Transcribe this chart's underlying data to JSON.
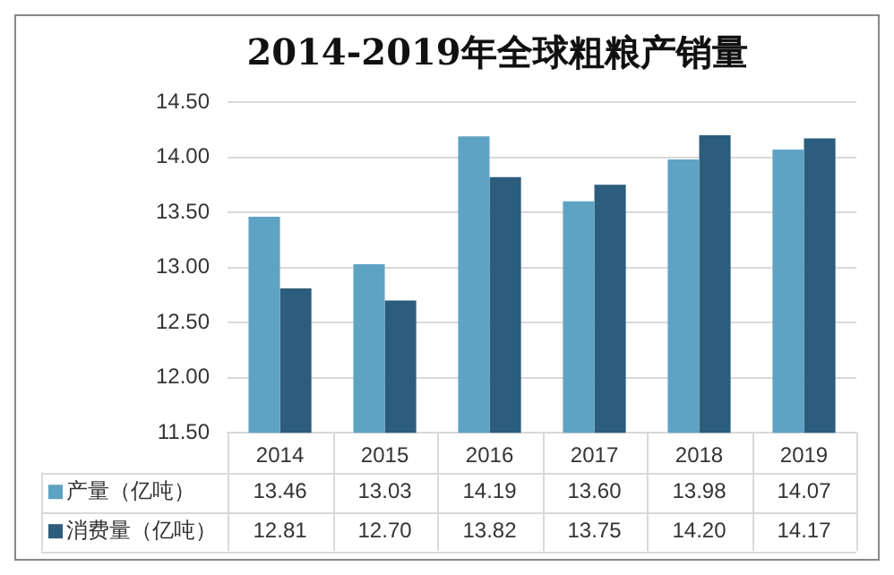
{
  "chart_data": {
    "type": "bar",
    "title": "2014-2019年全球粗粮产销量",
    "categories": [
      "2014",
      "2015",
      "2016",
      "2017",
      "2018",
      "2019"
    ],
    "series": [
      {
        "name": "产量（亿吨）",
        "color": "#5fa3c4",
        "values": [
          13.46,
          13.03,
          14.19,
          13.6,
          13.98,
          14.07
        ],
        "value_labels": [
          "13.46",
          "13.03",
          "14.19",
          "13.60",
          "13.98",
          "14.07"
        ]
      },
      {
        "name": "消费量（亿吨）",
        "color": "#2c5d7c",
        "values": [
          12.81,
          12.7,
          13.82,
          13.75,
          14.2,
          14.17
        ],
        "value_labels": [
          "12.81",
          "12.70",
          "13.82",
          "13.75",
          "14.20",
          "14.17"
        ]
      }
    ],
    "ylim": [
      11.5,
      14.5
    ],
    "yticks": [
      {
        "value": 11.5,
        "label": "11.50"
      },
      {
        "value": 12,
        "label": "12.00"
      },
      {
        "value": 12.5,
        "label": "12.50"
      },
      {
        "value": 13,
        "label": "13.00"
      },
      {
        "value": 13.5,
        "label": "13.50"
      },
      {
        "value": 14,
        "label": "14.00"
      },
      {
        "value": 14.5,
        "label": "14.50"
      }
    ],
    "grid": "y",
    "legend": "bottom"
  }
}
